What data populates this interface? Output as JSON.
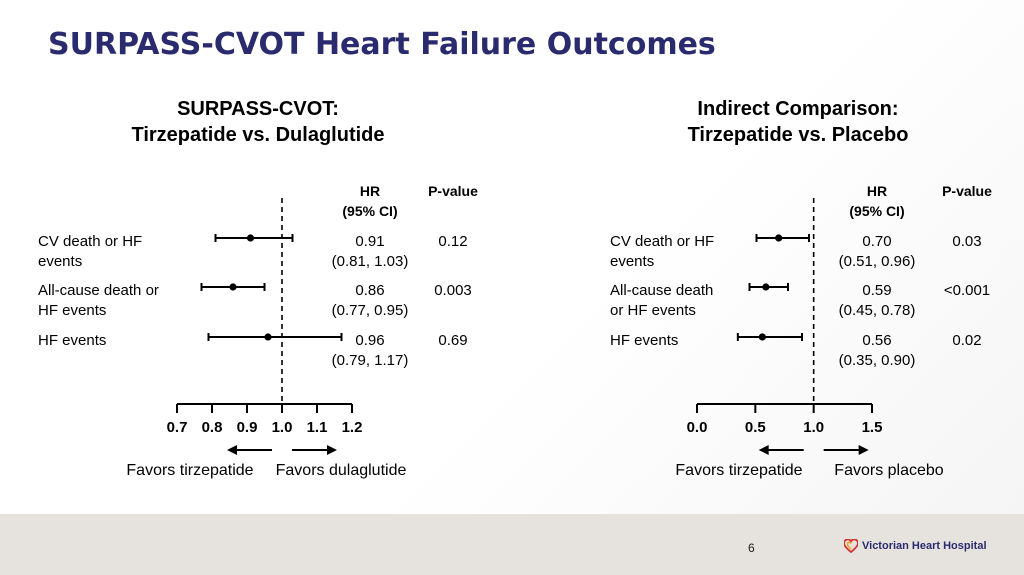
{
  "slide": {
    "title": "SURPASS-CVOT Heart Failure Outcomes",
    "page_number": "6",
    "logo_text": "Victorian Heart Hospital",
    "colors": {
      "title": "#2a2a6e",
      "footer": "#e6e3de",
      "logo_red": "#d62f2f",
      "logo_orange": "#f0a020"
    }
  },
  "chart_data": [
    {
      "type": "forest",
      "title_lines": [
        "SURPASS-CVOT:",
        "Tirzepatide vs. Dulaglutide"
      ],
      "hr_header": [
        "HR",
        "(95% CI)"
      ],
      "p_header": "P-value",
      "xlim": [
        0.7,
        1.2
      ],
      "xticks": [
        "0.7",
        "0.8",
        "0.9",
        "1.0",
        "1.1",
        "1.2"
      ],
      "reference_line": 1.0,
      "favors_left": "Favors tirzepatide",
      "favors_right": "Favors dulaglutide",
      "rows": [
        {
          "label": [
            "CV death or HF",
            "events"
          ],
          "hr": 0.91,
          "lo": 0.81,
          "hi": 1.03,
          "hr_text": "0.91",
          "ci_text": "(0.81, 1.03)",
          "p": "0.12"
        },
        {
          "label": [
            "All-cause death or",
            "HF events"
          ],
          "hr": 0.86,
          "lo": 0.77,
          "hi": 0.95,
          "hr_text": "0.86",
          "ci_text": "(0.77, 0.95)",
          "p": "0.003"
        },
        {
          "label": [
            "HF events"
          ],
          "hr": 0.96,
          "lo": 0.79,
          "hi": 1.17,
          "hr_text": "0.96",
          "ci_text": "(0.79, 1.17)",
          "p": "0.69"
        }
      ]
    },
    {
      "type": "forest",
      "title_lines": [
        "Indirect Comparison:",
        "Tirzepatide vs. Placebo"
      ],
      "hr_header": [
        "HR",
        "(95% CI)"
      ],
      "p_header": "P-value",
      "xlim": [
        0.0,
        1.5
      ],
      "xticks": [
        "0.0",
        "0.5",
        "1.0",
        "1.5"
      ],
      "reference_line": 1.0,
      "favors_left": "Favors tirzepatide",
      "favors_right": "Favors placebo",
      "rows": [
        {
          "label": [
            "CV death or HF",
            "events"
          ],
          "hr": 0.7,
          "lo": 0.51,
          "hi": 0.96,
          "hr_text": "0.70",
          "ci_text": "(0.51, 0.96)",
          "p": "0.03"
        },
        {
          "label": [
            "All-cause death",
            "or HF events"
          ],
          "hr": 0.59,
          "lo": 0.45,
          "hi": 0.78,
          "hr_text": "0.59",
          "ci_text": "(0.45, 0.78)",
          "p": "<0.001"
        },
        {
          "label": [
            "HF events"
          ],
          "hr": 0.56,
          "lo": 0.35,
          "hi": 0.9,
          "hr_text": "0.56",
          "ci_text": "(0.35, 0.90)",
          "p": "0.02"
        }
      ]
    }
  ]
}
